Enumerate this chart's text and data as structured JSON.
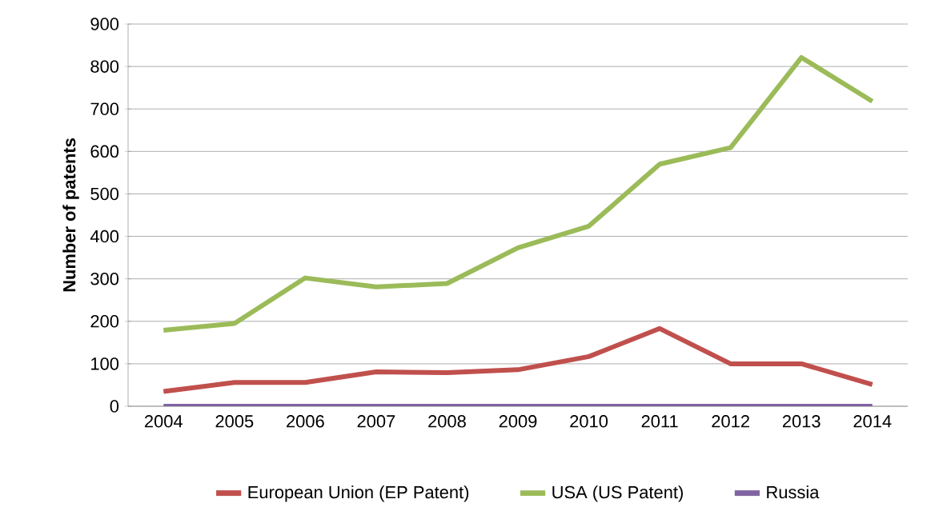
{
  "chart_data": {
    "type": "line",
    "ylabel": "Number of patents",
    "categories": [
      "2004",
      "2005",
      "2006",
      "2007",
      "2008",
      "2009",
      "2010",
      "2011",
      "2012",
      "2013",
      "2014"
    ],
    "series": [
      {
        "name": "European Union (EP Patent)",
        "color": "#c0504d",
        "values": [
          35,
          56,
          56,
          81,
          79,
          86,
          117,
          183,
          100,
          100,
          51
        ]
      },
      {
        "name": "USA (US Patent)",
        "color": "#9bbb59",
        "values": [
          179,
          195,
          302,
          281,
          289,
          373,
          424,
          570,
          609,
          821,
          718
        ]
      },
      {
        "name": "Russia",
        "color": "#8064a2",
        "values": [
          0,
          0,
          0,
          0,
          0,
          0,
          0,
          0,
          0,
          0,
          0
        ]
      }
    ],
    "ylim": [
      0,
      900
    ],
    "yticks": [
      0,
      100,
      200,
      300,
      400,
      500,
      600,
      700,
      800,
      900
    ],
    "grid": "y",
    "legend": "bottom",
    "marker": "none",
    "line_style": "solid"
  }
}
